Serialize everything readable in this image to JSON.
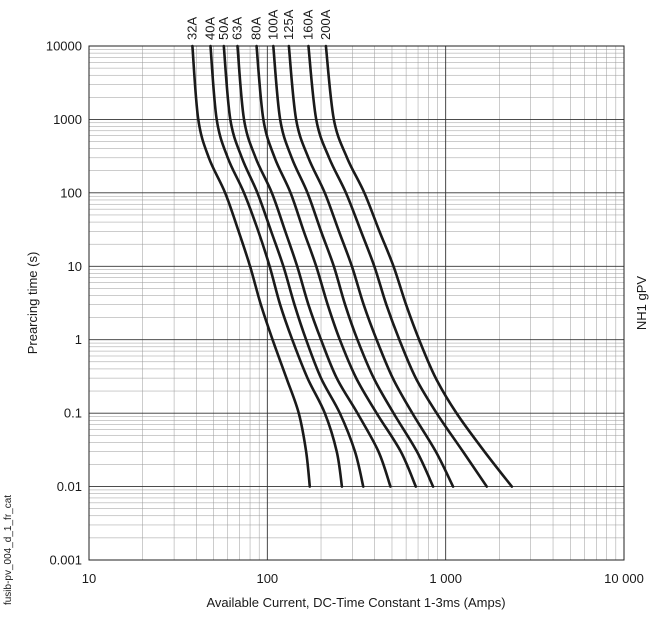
{
  "chart_data": {
    "type": "line",
    "xlabel": "Available Current, DC-Time Constant 1-3ms (Amps)",
    "ylabel": "Prearcing time (s)",
    "side_label": "NH1 gPV",
    "watermark": "fusib-pv_004_d_1_fr_cat",
    "x_scale": "log",
    "y_scale": "log",
    "xlim": [
      10,
      10000
    ],
    "ylim": [
      0.001,
      10000
    ],
    "grid": true,
    "x_ticks": [
      {
        "value": 10,
        "label": "10"
      },
      {
        "value": 100,
        "label": "100"
      },
      {
        "value": 1000,
        "label": "1 000"
      },
      {
        "value": 10000,
        "label": "10 000"
      }
    ],
    "y_ticks": [
      {
        "value": 10000,
        "label": "10000"
      },
      {
        "value": 1000,
        "label": "1000"
      },
      {
        "value": 100,
        "label": "100"
      },
      {
        "value": 10,
        "label": "10"
      },
      {
        "value": 1,
        "label": "1"
      },
      {
        "value": 0.1,
        "label": "0.1"
      },
      {
        "value": 0.01,
        "label": "0.01"
      },
      {
        "value": 0.001,
        "label": "0.001"
      }
    ],
    "series": [
      {
        "name": "32A",
        "points": [
          [
            38,
            10000
          ],
          [
            41,
            1000
          ],
          [
            47,
            300
          ],
          [
            58,
            100
          ],
          [
            69,
            30
          ],
          [
            80,
            10
          ],
          [
            92,
            3
          ],
          [
            107,
            1
          ],
          [
            128,
            0.3
          ],
          [
            150,
            0.1
          ],
          [
            165,
            0.03
          ],
          [
            173,
            0.01
          ]
        ]
      },
      {
        "name": "40A",
        "points": [
          [
            48,
            10000
          ],
          [
            52,
            1000
          ],
          [
            60,
            300
          ],
          [
            74,
            100
          ],
          [
            89,
            30
          ],
          [
            103,
            10
          ],
          [
            118,
            3
          ],
          [
            138,
            1
          ],
          [
            168,
            0.3
          ],
          [
            210,
            0.1
          ],
          [
            245,
            0.03
          ],
          [
            262,
            0.01
          ]
        ]
      },
      {
        "name": "50A",
        "points": [
          [
            57,
            10000
          ],
          [
            62,
            1000
          ],
          [
            72,
            300
          ],
          [
            88,
            100
          ],
          [
            105,
            30
          ],
          [
            123,
            10
          ],
          [
            142,
            3
          ],
          [
            165,
            1
          ],
          [
            200,
            0.3
          ],
          [
            255,
            0.1
          ],
          [
            310,
            0.03
          ],
          [
            345,
            0.01
          ]
        ]
      },
      {
        "name": "63A",
        "points": [
          [
            68,
            10000
          ],
          [
            74,
            1000
          ],
          [
            86,
            300
          ],
          [
            106,
            100
          ],
          [
            126,
            30
          ],
          [
            147,
            10
          ],
          [
            170,
            3
          ],
          [
            200,
            1
          ],
          [
            245,
            0.3
          ],
          [
            320,
            0.1
          ],
          [
            420,
            0.03
          ],
          [
            490,
            0.01
          ]
        ]
      },
      {
        "name": "80A",
        "points": [
          [
            87,
            10000
          ],
          [
            95,
            1000
          ],
          [
            110,
            300
          ],
          [
            135,
            100
          ],
          [
            160,
            30
          ],
          [
            188,
            10
          ],
          [
            218,
            3
          ],
          [
            255,
            1
          ],
          [
            315,
            0.3
          ],
          [
            410,
            0.1
          ],
          [
            560,
            0.03
          ],
          [
            680,
            0.01
          ]
        ]
      },
      {
        "name": "100A",
        "points": [
          [
            108,
            10000
          ],
          [
            118,
            1000
          ],
          [
            137,
            300
          ],
          [
            168,
            100
          ],
          [
            200,
            30
          ],
          [
            236,
            10
          ],
          [
            273,
            3
          ],
          [
            320,
            1
          ],
          [
            395,
            0.3
          ],
          [
            510,
            0.1
          ],
          [
            690,
            0.03
          ],
          [
            850,
            0.01
          ]
        ]
      },
      {
        "name": "125A",
        "points": [
          [
            132,
            10000
          ],
          [
            145,
            1000
          ],
          [
            170,
            300
          ],
          [
            210,
            100
          ],
          [
            252,
            30
          ],
          [
            298,
            10
          ],
          [
            347,
            3
          ],
          [
            410,
            1
          ],
          [
            505,
            0.3
          ],
          [
            650,
            0.1
          ],
          [
            880,
            0.03
          ],
          [
            1100,
            0.01
          ]
        ]
      },
      {
        "name": "160A",
        "points": [
          [
            170,
            10000
          ],
          [
            188,
            1000
          ],
          [
            222,
            300
          ],
          [
            276,
            100
          ],
          [
            335,
            30
          ],
          [
            398,
            10
          ],
          [
            465,
            3
          ],
          [
            550,
            1
          ],
          [
            680,
            0.3
          ],
          [
            890,
            0.1
          ],
          [
            1250,
            0.03
          ],
          [
            1700,
            0.01
          ]
        ]
      },
      {
        "name": "200A",
        "points": [
          [
            213,
            10000
          ],
          [
            236,
            1000
          ],
          [
            280,
            300
          ],
          [
            350,
            100
          ],
          [
            425,
            30
          ],
          [
            510,
            10
          ],
          [
            600,
            3
          ],
          [
            710,
            1
          ],
          [
            880,
            0.3
          ],
          [
            1150,
            0.1
          ],
          [
            1650,
            0.03
          ],
          [
            2350,
            0.01
          ]
        ]
      }
    ]
  }
}
